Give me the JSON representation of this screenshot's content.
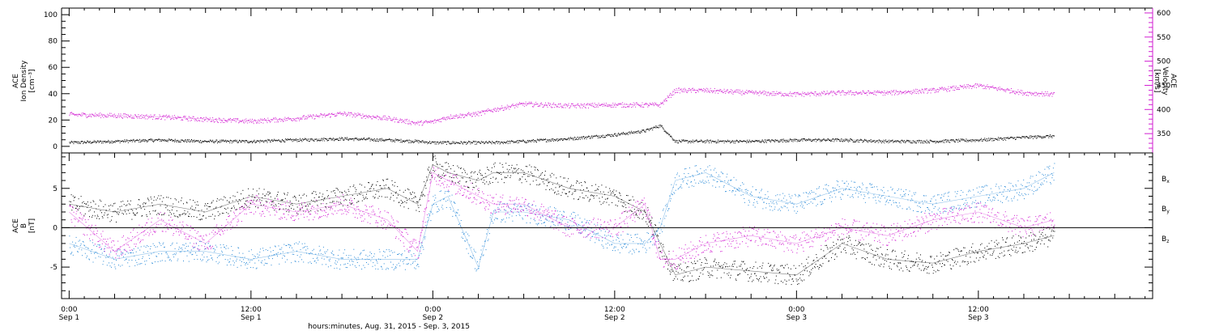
{
  "colors": {
    "black": "#000000",
    "magenta": "#d21ed2",
    "blue": "#2a8ad8"
  },
  "x_axis": {
    "title": "hours:minutes, Aug. 31, 2015 - Sep.  3, 2015",
    "ticks": [
      {
        "time": "0:00",
        "date": "Sep 1",
        "hours": 0
      },
      {
        "time": "12:00",
        "date": "Sep 1",
        "hours": 12
      },
      {
        "time": "0:00",
        "date": "Sep 2",
        "hours": 24
      },
      {
        "time": "12:00",
        "date": "Sep 2",
        "hours": 36
      },
      {
        "time": "0:00",
        "date": "Sep 3",
        "hours": 48
      },
      {
        "time": "12:00",
        "date": "Sep 3",
        "hours": 60
      }
    ],
    "range_hours": [
      -0.5,
      71.5
    ]
  },
  "chart_data": [
    {
      "type": "scatter",
      "panel": "top",
      "ylabel_left": [
        "ACE",
        "Ion Density",
        "[cm⁻³]"
      ],
      "ylabel_right": [
        "ACE",
        "Velocity",
        "[km/s]"
      ],
      "ylim_left": [
        -5,
        105
      ],
      "ylim_right": [
        310,
        610
      ],
      "left_ticks": [
        0,
        20,
        40,
        60,
        80,
        100
      ],
      "right_ticks": [
        350,
        400,
        450,
        500,
        550,
        600
      ],
      "series": [
        {
          "axis": "left",
          "color": "black",
          "x": [
            0,
            3,
            6,
            9,
            12,
            15,
            18,
            21,
            23,
            24,
            25,
            27,
            28,
            30,
            33,
            36,
            38,
            39,
            40,
            42,
            45,
            48,
            51,
            54,
            57,
            60,
            63,
            65
          ],
          "y": [
            3,
            4,
            5,
            4,
            4,
            5,
            6,
            5,
            4,
            3,
            3,
            3,
            3,
            4,
            6,
            9,
            12,
            16,
            4,
            4,
            4,
            5,
            5,
            4,
            4,
            5,
            7,
            8
          ]
        },
        {
          "axis": "right",
          "color": "magenta",
          "x": [
            0,
            3,
            6,
            9,
            12,
            15,
            18,
            21,
            23,
            24,
            25,
            27,
            28,
            30,
            33,
            36,
            38,
            39,
            40,
            42,
            45,
            48,
            51,
            54,
            57,
            60,
            63,
            65
          ],
          "y": [
            390,
            388,
            385,
            380,
            376,
            382,
            392,
            382,
            372,
            375,
            385,
            392,
            400,
            412,
            408,
            410,
            410,
            410,
            440,
            440,
            435,
            432,
            435,
            435,
            440,
            450,
            435,
            432
          ]
        }
      ]
    },
    {
      "type": "scatter",
      "panel": "bottom",
      "ylabel_left": [
        "ACE",
        "B",
        "[nT]"
      ],
      "ylim": [
        -9,
        9.5
      ],
      "ticks": [
        -5,
        0,
        5
      ],
      "zero_line": true,
      "legend": [
        {
          "base": "B",
          "sub": "x",
          "color": "black"
        },
        {
          "base": "B",
          "sub": "y",
          "color": "blue"
        },
        {
          "base": "B",
          "sub": "z",
          "color": "magenta"
        }
      ],
      "series": [
        {
          "name": "Bx",
          "color": "black",
          "x": [
            0,
            3,
            6,
            9,
            12,
            15,
            18,
            21,
            23,
            24,
            25,
            27,
            28,
            30,
            33,
            36,
            38,
            39,
            40,
            42,
            45,
            48,
            51,
            54,
            57,
            60,
            63,
            65
          ],
          "y": [
            3,
            2,
            3,
            2,
            4,
            3,
            4,
            5,
            3,
            8,
            7,
            6,
            7,
            7,
            5,
            4,
            2,
            -2,
            -6,
            -5,
            -5.5,
            -6,
            -2,
            -4,
            -4.5,
            -3,
            -2,
            -1
          ]
        },
        {
          "name": "By",
          "color": "blue",
          "x": [
            0,
            3,
            6,
            9,
            12,
            15,
            18,
            21,
            23,
            24,
            25,
            27,
            28,
            30,
            33,
            36,
            38,
            39,
            40,
            42,
            45,
            48,
            51,
            54,
            57,
            60,
            63,
            65
          ],
          "y": [
            -2,
            -4,
            -3,
            -3,
            -4,
            -3,
            -4,
            -4,
            -4,
            3,
            4,
            -5,
            2,
            2,
            1,
            -2,
            -2,
            0,
            6,
            7,
            4,
            3,
            5,
            4,
            3,
            4,
            5,
            7
          ]
        },
        {
          "name": "Bz",
          "color": "magenta",
          "x": [
            0,
            3,
            6,
            9,
            12,
            15,
            18,
            21,
            23,
            24,
            25,
            27,
            28,
            30,
            33,
            36,
            38,
            39,
            40,
            42,
            45,
            48,
            51,
            54,
            57,
            60,
            63,
            65
          ],
          "y": [
            2,
            -3,
            1,
            -2,
            3,
            2,
            3,
            1,
            -3,
            7,
            6,
            4,
            3,
            3,
            0,
            0,
            3,
            -4,
            -4,
            -2,
            -1,
            -2,
            0,
            -1,
            1,
            2,
            0,
            1
          ]
        }
      ]
    }
  ]
}
